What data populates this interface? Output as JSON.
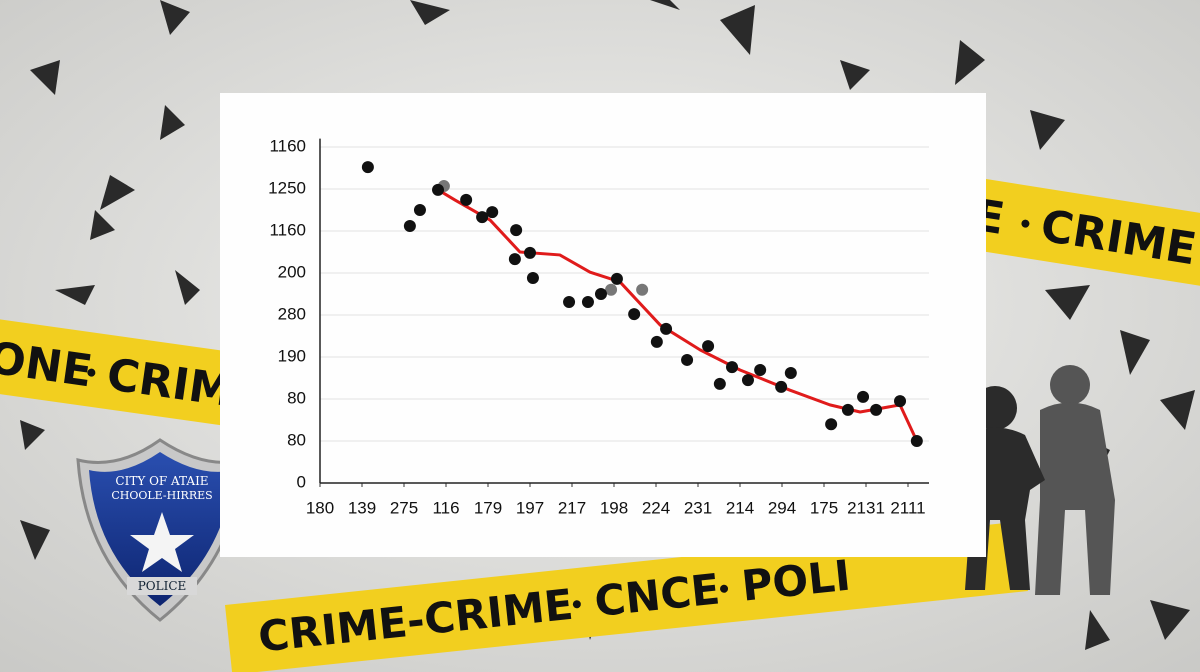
{
  "background": {
    "tape_top_right": [
      "E",
      "CRIME"
    ],
    "tape_left": [
      "ONE",
      "CRIM"
    ],
    "tape_bottom": [
      "CRIME-CRIME",
      "CNCE",
      "POLI"
    ],
    "badge": [
      "CITY OF ATAIE",
      "CHOOLE-HIRRES",
      "POLICE"
    ]
  },
  "chart_data": {
    "type": "scatter",
    "xlim": [
      0,
      14.5
    ],
    "ylim": [
      0,
      8.2
    ],
    "grid": true,
    "xticks": [
      {
        "value": 0,
        "label": "180"
      },
      {
        "value": 1,
        "label": "139"
      },
      {
        "value": 2,
        "label": "275"
      },
      {
        "value": 3,
        "label": "116"
      },
      {
        "value": 4,
        "label": "179"
      },
      {
        "value": 5,
        "label": "197"
      },
      {
        "value": 6,
        "label": "217"
      },
      {
        "value": 7,
        "label": "198"
      },
      {
        "value": 8,
        "label": "224"
      },
      {
        "value": 9,
        "label": "231"
      },
      {
        "value": 10,
        "label": "214"
      },
      {
        "value": 11,
        "label": "294"
      },
      {
        "value": 12,
        "label": "175"
      },
      {
        "value": 13,
        "label": "2131"
      },
      {
        "value": 14,
        "label": "2111"
      }
    ],
    "yticks": [
      {
        "value": 0,
        "label": "0"
      },
      {
        "value": 1,
        "label": "80"
      },
      {
        "value": 2,
        "label": "80"
      },
      {
        "value": 3,
        "label": "190"
      },
      {
        "value": 4,
        "label": "280"
      },
      {
        "value": 5,
        "label": "200"
      },
      {
        "value": 6,
        "label": "1160"
      },
      {
        "value": 7,
        "label": "1250"
      },
      {
        "value": 8,
        "label": "1160"
      }
    ],
    "points": {
      "color": "#111111",
      "x": [
        1.14,
        2.14,
        2.38,
        2.81,
        3.48,
        3.86,
        4.1,
        4.67,
        4.64,
        5.0,
        5.07,
        5.93,
        6.38,
        6.69,
        7.07,
        7.48,
        8.02,
        8.24,
        8.74,
        9.24,
        9.52,
        9.81,
        10.19,
        10.48,
        10.98,
        11.21,
        12.17,
        12.57,
        12.93,
        13.24,
        13.81,
        14.21
      ],
      "y": [
        7.52,
        6.12,
        6.5,
        6.98,
        6.74,
        6.33,
        6.45,
        6.02,
        5.33,
        5.48,
        4.88,
        4.31,
        4.31,
        4.5,
        4.86,
        4.02,
        3.36,
        3.67,
        2.93,
        3.26,
        2.36,
        2.76,
        2.45,
        2.69,
        2.29,
        2.62,
        1.4,
        1.74,
        2.05,
        1.74,
        1.95,
        1.0
      ]
    },
    "faint_points": {
      "color": "#777777",
      "x": [
        2.95,
        6.93,
        7.67
      ],
      "y": [
        7.07,
        4.6,
        4.6
      ]
    },
    "trend": {
      "color": "#e01b1b",
      "x": [
        2.81,
        3.21,
        4.05,
        4.76,
        5.71,
        6.43,
        7.14,
        8.1,
        9.05,
        10.0,
        11.19,
        12.14,
        12.86,
        13.81,
        14.21
      ],
      "y": [
        6.98,
        6.74,
        6.26,
        5.5,
        5.43,
        5.02,
        4.79,
        3.76,
        3.17,
        2.69,
        2.21,
        1.86,
        1.69,
        1.86,
        1.0
      ]
    }
  }
}
